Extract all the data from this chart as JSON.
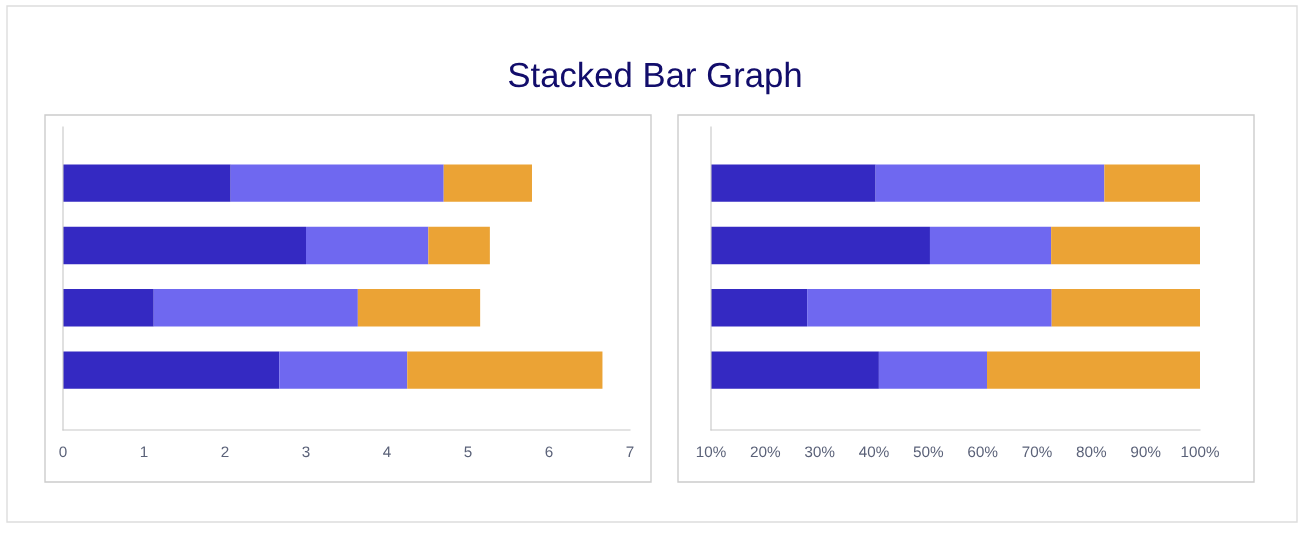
{
  "chart_data": [
    {
      "type": "bar",
      "title": "Stacked Bar Graph",
      "orientation": "horizontal",
      "stacked": true,
      "categories": [
        null,
        null,
        null,
        null
      ],
      "series": [
        {
          "color": "#3429c2",
          "values": [
            2.07,
            3.0,
            1.12,
            2.67
          ]
        },
        {
          "color": "#6f68f0",
          "values": [
            2.63,
            1.51,
            2.52,
            1.58
          ]
        },
        {
          "color": "#eba335",
          "values": [
            1.09,
            0.76,
            1.51,
            2.41
          ]
        }
      ],
      "xlim": [
        0,
        7
      ],
      "xticks": [
        0,
        1,
        2,
        3,
        4,
        5,
        6,
        7
      ],
      "grid": false
    },
    {
      "type": "bar",
      "orientation": "horizontal",
      "stacked": true,
      "categories": [
        null,
        null,
        null,
        null
      ],
      "series": [
        {
          "color": "#3429c2",
          "values": [
            40.3,
            50.3,
            27.7,
            40.9
          ]
        },
        {
          "color": "#6f68f0",
          "values": [
            42.1,
            22.3,
            45.0,
            19.9
          ]
        },
        {
          "color": "#eba335",
          "values": [
            17.6,
            27.4,
            27.3,
            39.2
          ]
        }
      ],
      "xlim": [
        10,
        100
      ],
      "xticks": [
        {
          "value": 10,
          "label": "10%"
        },
        {
          "value": 20,
          "label": "20%"
        },
        {
          "value": 30,
          "label": "30%"
        },
        {
          "value": 40,
          "label": "40%"
        },
        {
          "value": 50,
          "label": "50%"
        },
        {
          "value": 60,
          "label": "60%"
        },
        {
          "value": 70,
          "label": "70%"
        },
        {
          "value": 80,
          "label": "80%"
        },
        {
          "value": 90,
          "label": "90%"
        },
        {
          "value": 100,
          "label": "100%"
        }
      ],
      "grid": false
    }
  ]
}
